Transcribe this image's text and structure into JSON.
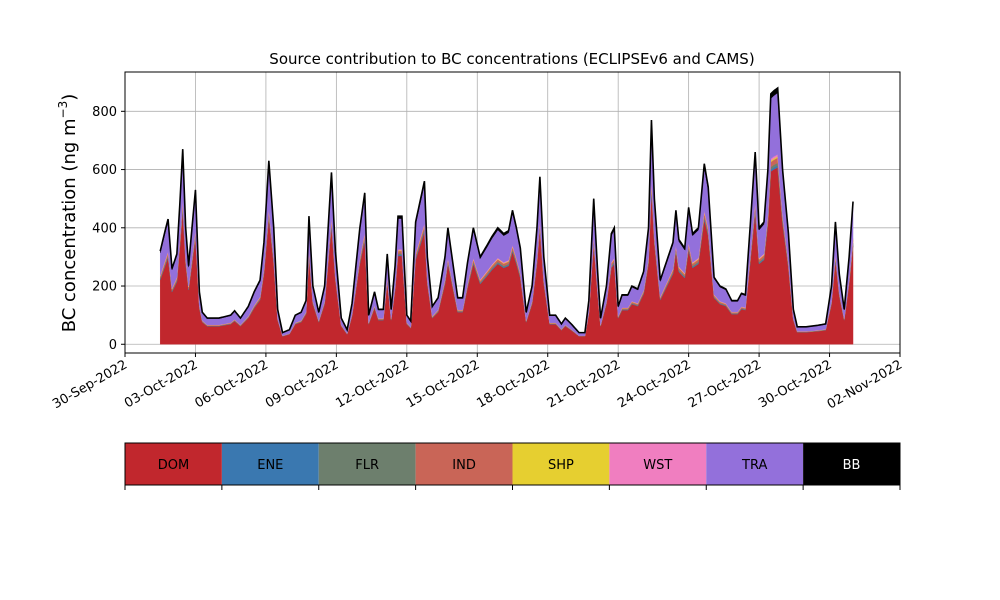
{
  "chart_data": {
    "type": "area",
    "title": "Source contribution to BC concentrations (ECLIPSEv6 and CAMS)",
    "ylabel": "BC concentration (ng m",
    "ylabel_exponent": "−3",
    "ylabel_close": ")",
    "xlabel": "",
    "ylim": [
      -30,
      935
    ],
    "yticks": [
      0,
      200,
      400,
      600,
      800
    ],
    "xlim": [
      "2022-09-30T00:00",
      "2022-11-02T00:00"
    ],
    "xticks": [
      "30-Sep-2022",
      "03-Oct-2022",
      "06-Oct-2022",
      "09-Oct-2022",
      "12-Oct-2022",
      "15-Oct-2022",
      "18-Oct-2022",
      "21-Oct-2022",
      "24-Oct-2022",
      "27-Oct-2022",
      "30-Oct-2022",
      "02-Nov-2022"
    ],
    "grid": true,
    "stacked": true,
    "total_anchors": [
      [
        "2022-10-01T12:00",
        320
      ],
      [
        "2022-10-01T17:00",
        390
      ],
      [
        "2022-10-01T20:00",
        430
      ],
      [
        "2022-10-02T00:00",
        260
      ],
      [
        "2022-10-02T05:00",
        310
      ],
      [
        "2022-10-02T08:00",
        480
      ],
      [
        "2022-10-02T11:00",
        670
      ],
      [
        "2022-10-02T14:00",
        400
      ],
      [
        "2022-10-02T17:00",
        270
      ],
      [
        "2022-10-02T21:00",
        420
      ],
      [
        "2022-10-03T00:00",
        530
      ],
      [
        "2022-10-03T04:00",
        180
      ],
      [
        "2022-10-03T07:00",
        110
      ],
      [
        "2022-10-03T12:00",
        90
      ],
      [
        "2022-10-04T00:00",
        90
      ],
      [
        "2022-10-04T12:00",
        100
      ],
      [
        "2022-10-04T16:00",
        115
      ],
      [
        "2022-10-04T22:00",
        90
      ],
      [
        "2022-10-05T06:00",
        130
      ],
      [
        "2022-10-05T12:00",
        180
      ],
      [
        "2022-10-05T18:00",
        220
      ],
      [
        "2022-10-05T22:00",
        350
      ],
      [
        "2022-10-06T03:00",
        630
      ],
      [
        "2022-10-06T08:00",
        400
      ],
      [
        "2022-10-06T12:00",
        120
      ],
      [
        "2022-10-06T17:00",
        40
      ],
      [
        "2022-10-07T00:00",
        50
      ],
      [
        "2022-10-07T06:00",
        100
      ],
      [
        "2022-10-07T12:00",
        110
      ],
      [
        "2022-10-07T17:00",
        150
      ],
      [
        "2022-10-07T20:00",
        440
      ],
      [
        "2022-10-08T00:00",
        200
      ],
      [
        "2022-10-08T06:00",
        110
      ],
      [
        "2022-10-08T12:00",
        200
      ],
      [
        "2022-10-08T19:00",
        590
      ],
      [
        "2022-10-08T23:00",
        320
      ],
      [
        "2022-10-09T05:00",
        90
      ],
      [
        "2022-10-09T11:00",
        50
      ],
      [
        "2022-10-09T16:00",
        140
      ],
      [
        "2022-10-10T00:00",
        400
      ],
      [
        "2022-10-10T05:00",
        520
      ],
      [
        "2022-10-10T09:00",
        100
      ],
      [
        "2022-10-10T15:00",
        180
      ],
      [
        "2022-10-10T19:00",
        120
      ],
      [
        "2022-10-11T00:00",
        120
      ],
      [
        "2022-10-11T04:00",
        310
      ],
      [
        "2022-10-11T08:00",
        120
      ],
      [
        "2022-10-11T12:00",
        270
      ],
      [
        "2022-10-11T15:00",
        440
      ],
      [
        "2022-10-11T19:00",
        440
      ],
      [
        "2022-10-12T00:00",
        100
      ],
      [
        "2022-10-12T04:00",
        80
      ],
      [
        "2022-10-12T09:00",
        420
      ],
      [
        "2022-10-12T18:00",
        560
      ],
      [
        "2022-10-12T21:00",
        300
      ],
      [
        "2022-10-13T02:00",
        130
      ],
      [
        "2022-10-13T08:00",
        160
      ],
      [
        "2022-10-13T15:00",
        300
      ],
      [
        "2022-10-13T18:00",
        400
      ],
      [
        "2022-10-13T23:00",
        280
      ],
      [
        "2022-10-14T04:00",
        160
      ],
      [
        "2022-10-14T09:00",
        160
      ],
      [
        "2022-10-14T14:00",
        280
      ],
      [
        "2022-10-14T20:00",
        400
      ],
      [
        "2022-10-15T03:00",
        300
      ],
      [
        "2022-10-15T10:00",
        340
      ],
      [
        "2022-10-15T15:00",
        370
      ],
      [
        "2022-10-15T21:00",
        400
      ],
      [
        "2022-10-16T03:00",
        380
      ],
      [
        "2022-10-16T08:00",
        390
      ],
      [
        "2022-10-16T12:00",
        460
      ],
      [
        "2022-10-16T16:00",
        400
      ],
      [
        "2022-10-16T20:00",
        330
      ],
      [
        "2022-10-17T02:00",
        110
      ],
      [
        "2022-10-17T08:00",
        200
      ],
      [
        "2022-10-17T13:00",
        400
      ],
      [
        "2022-10-17T16:00",
        575
      ],
      [
        "2022-10-17T20:00",
        300
      ],
      [
        "2022-10-18T02:00",
        100
      ],
      [
        "2022-10-18T08:00",
        100
      ],
      [
        "2022-10-18T14:00",
        70
      ],
      [
        "2022-10-18T18:00",
        90
      ],
      [
        "2022-10-19T00:00",
        70
      ],
      [
        "2022-10-19T08:00",
        40
      ],
      [
        "2022-10-19T14:00",
        40
      ],
      [
        "2022-10-19T18:00",
        150
      ],
      [
        "2022-10-19T23:00",
        500
      ],
      [
        "2022-10-20T03:00",
        250
      ],
      [
        "2022-10-20T06:00",
        90
      ],
      [
        "2022-10-20T12:00",
        200
      ],
      [
        "2022-10-20T17:00",
        380
      ],
      [
        "2022-10-20T20:00",
        400
      ],
      [
        "2022-10-21T00:00",
        130
      ],
      [
        "2022-10-21T04:00",
        170
      ],
      [
        "2022-10-21T10:00",
        170
      ],
      [
        "2022-10-21T14:00",
        200
      ],
      [
        "2022-10-21T20:00",
        190
      ],
      [
        "2022-10-22T02:00",
        250
      ],
      [
        "2022-10-22T07:00",
        400
      ],
      [
        "2022-10-22T10:00",
        770
      ],
      [
        "2022-10-22T13:00",
        500
      ],
      [
        "2022-10-22T19:00",
        220
      ],
      [
        "2022-10-23T02:00",
        290
      ],
      [
        "2022-10-23T08:00",
        350
      ],
      [
        "2022-10-23T11:00",
        460
      ],
      [
        "2022-10-23T14:00",
        360
      ],
      [
        "2022-10-23T20:00",
        330
      ],
      [
        "2022-10-24T00:00",
        470
      ],
      [
        "2022-10-24T04:00",
        380
      ],
      [
        "2022-10-24T10:00",
        400
      ],
      [
        "2022-10-24T16:00",
        620
      ],
      [
        "2022-10-24T20:00",
        540
      ],
      [
        "2022-10-25T02:00",
        230
      ],
      [
        "2022-10-25T08:00",
        200
      ],
      [
        "2022-10-25T14:00",
        190
      ],
      [
        "2022-10-25T20:00",
        150
      ],
      [
        "2022-10-26T02:00",
        150
      ],
      [
        "2022-10-26T06:00",
        175
      ],
      [
        "2022-10-26T10:00",
        170
      ],
      [
        "2022-10-26T15:00",
        410
      ],
      [
        "2022-10-26T20:00",
        660
      ],
      [
        "2022-10-27T00:00",
        400
      ],
      [
        "2022-10-27T05:00",
        420
      ],
      [
        "2022-10-27T09:00",
        600
      ],
      [
        "2022-10-27T12:00",
        860
      ],
      [
        "2022-10-27T15:00",
        870
      ],
      [
        "2022-10-27T19:00",
        880
      ],
      [
        "2022-10-28T00:00",
        600
      ],
      [
        "2022-10-28T06:00",
        380
      ],
      [
        "2022-10-28T11:00",
        120
      ],
      [
        "2022-10-28T15:00",
        60
      ],
      [
        "2022-10-29T00:00",
        60
      ],
      [
        "2022-10-29T12:00",
        65
      ],
      [
        "2022-10-29T20:00",
        70
      ],
      [
        "2022-10-30T02:00",
        200
      ],
      [
        "2022-10-30T06:00",
        420
      ],
      [
        "2022-10-30T10:00",
        240
      ],
      [
        "2022-10-30T15:00",
        120
      ],
      [
        "2022-10-30T20:00",
        300
      ],
      [
        "2022-10-31T00:00",
        490
      ]
    ],
    "series": [
      {
        "name": "DOM",
        "color": "#c1272d",
        "fraction": 0.69
      },
      {
        "name": "ENE",
        "color": "#3a78b0",
        "fraction": 0.008
      },
      {
        "name": "FLR",
        "color": "#6d7f6d",
        "fraction": 0.01
      },
      {
        "name": "IND",
        "color": "#c96557",
        "fraction": 0.02
      },
      {
        "name": "SHP",
        "color": "#e6cf30",
        "fraction": 0.005
      },
      {
        "name": "WST",
        "color": "#f07ec0",
        "fraction": 0.008
      },
      {
        "name": "TRA",
        "color": "#9370db",
        "fraction": 0.24
      },
      {
        "name": "BB",
        "color": "#000000",
        "fraction": 0.019
      }
    ],
    "legend": {
      "placement": "bottom",
      "entries": [
        "DOM",
        "ENE",
        "FLR",
        "IND",
        "SHP",
        "WST",
        "TRA",
        "BB"
      ],
      "text_colors": [
        "#000000",
        "#000000",
        "#000000",
        "#000000",
        "#000000",
        "#000000",
        "#000000",
        "#ffffff"
      ]
    }
  }
}
